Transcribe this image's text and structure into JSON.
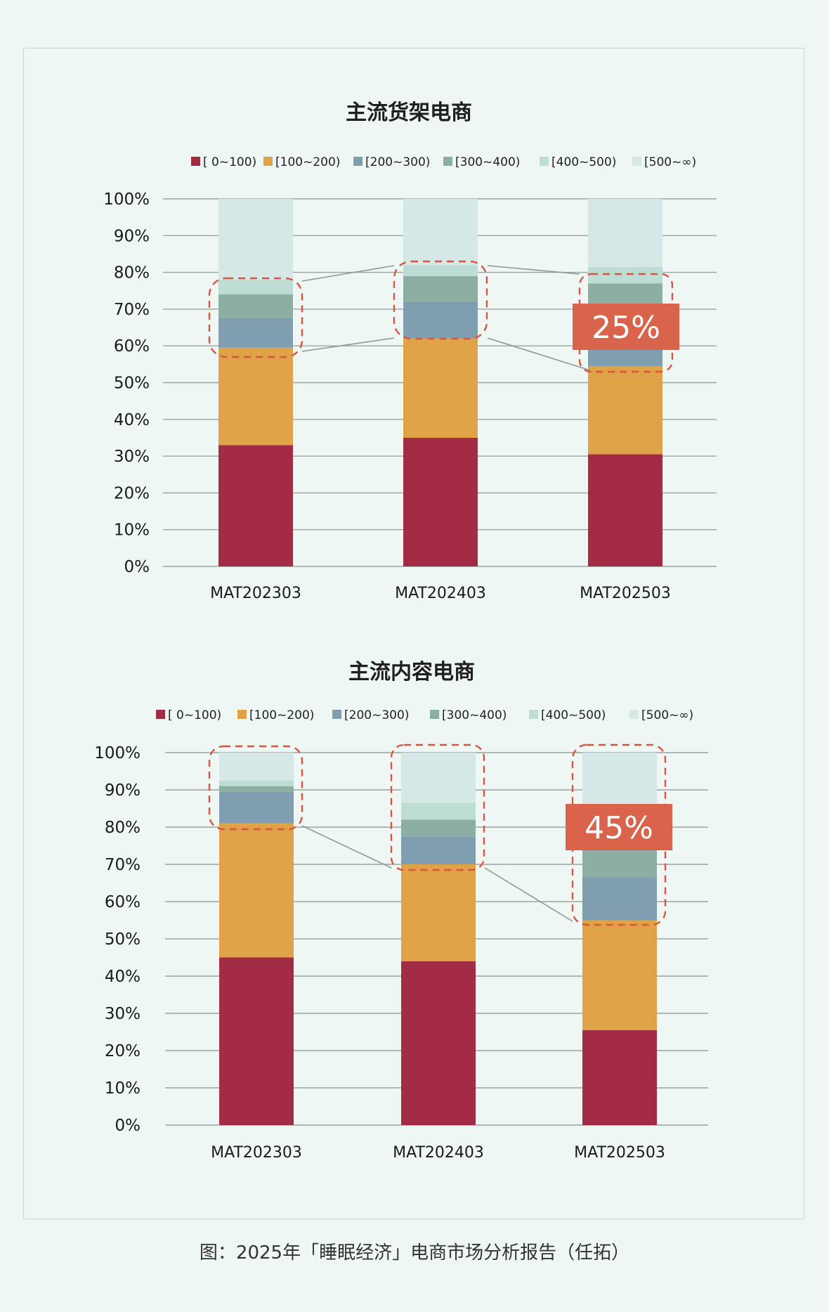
{
  "caption": "图：2025年「睡眠经济」电商市场分析报告（任拓）",
  "colors": [
    "#a22c44",
    "#dfa246",
    "#7f9fb1",
    "#8daea3",
    "#bddcd3",
    "#d6e8e6"
  ],
  "chart_data": [
    {
      "type": "bar",
      "stacked": true,
      "title": "主流货架电商",
      "legend": [
        "[ 0~100)",
        "[100~200)",
        "[200~300)",
        "[300~400)",
        "[400~500)",
        "[500~∞)"
      ],
      "categories": [
        "MAT202303",
        "MAT202403",
        "MAT202503"
      ],
      "ylim": [
        0,
        100
      ],
      "yticks": [
        "0%",
        "10%",
        "20%",
        "30%",
        "40%",
        "50%",
        "60%",
        "70%",
        "80%",
        "90%",
        "100%"
      ],
      "series": [
        {
          "name": "[ 0~100)",
          "values": [
            33,
            35,
            30.5
          ]
        },
        {
          "name": "[100~200)",
          "values": [
            26.5,
            27,
            24
          ]
        },
        {
          "name": "[200~300)",
          "values": [
            8,
            10,
            10
          ]
        },
        {
          "name": "[300~400)",
          "values": [
            6.5,
            7,
            12.5
          ]
        },
        {
          "name": "[400~500)",
          "values": [
            4,
            3,
            4.5
          ]
        },
        {
          "name": "[500~∞)",
          "values": [
            22,
            18,
            18.5
          ]
        }
      ],
      "callout": "25%",
      "grid": true,
      "legend_position": "top"
    },
    {
      "type": "bar",
      "stacked": true,
      "title": "主流内容电商",
      "legend": [
        "[ 0~100)",
        "[100~200)",
        "[200~300)",
        "[300~400)",
        "[400~500)",
        "[500~∞)"
      ],
      "categories": [
        "MAT202303",
        "MAT202403",
        "MAT202503"
      ],
      "ylim": [
        0,
        100
      ],
      "yticks": [
        "0%",
        "10%",
        "20%",
        "30%",
        "40%",
        "50%",
        "60%",
        "70%",
        "80%",
        "90%",
        "100%"
      ],
      "series": [
        {
          "name": "[ 0~100)",
          "values": [
            45,
            44,
            25.5
          ]
        },
        {
          "name": "[100~200)",
          "values": [
            36,
            26,
            29.5
          ]
        },
        {
          "name": "[200~300)",
          "values": [
            8.5,
            7.5,
            11.5
          ]
        },
        {
          "name": "[300~400)",
          "values": [
            1.5,
            4.5,
            9
          ]
        },
        {
          "name": "[400~500)",
          "values": [
            1.5,
            4.5,
            4
          ]
        },
        {
          "name": "[500~∞)",
          "values": [
            7.5,
            13.5,
            20.5
          ]
        }
      ],
      "callout": "45%",
      "grid": true,
      "legend_position": "top"
    }
  ]
}
